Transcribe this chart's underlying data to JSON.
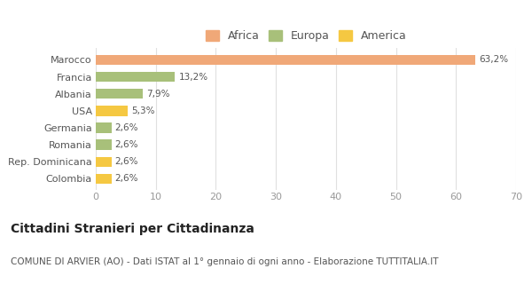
{
  "categories": [
    "Colombia",
    "Rep. Dominicana",
    "Romania",
    "Germania",
    "USA",
    "Albania",
    "Francia",
    "Marocco"
  ],
  "values": [
    2.6,
    2.6,
    2.6,
    2.6,
    5.3,
    7.9,
    13.2,
    63.2
  ],
  "labels": [
    "2,6%",
    "2,6%",
    "2,6%",
    "2,6%",
    "5,3%",
    "7,9%",
    "13,2%",
    "63,2%"
  ],
  "colors": [
    "#f5c842",
    "#f5c842",
    "#a8c07a",
    "#a8c07a",
    "#f5c842",
    "#a8c07a",
    "#a8c07a",
    "#f0a878"
  ],
  "legend_items": [
    {
      "label": "Africa",
      "color": "#f0a878"
    },
    {
      "label": "Europa",
      "color": "#a8c07a"
    },
    {
      "label": "America",
      "color": "#f5c842"
    }
  ],
  "xlim": [
    0,
    70
  ],
  "xticks": [
    0,
    10,
    20,
    30,
    40,
    50,
    60,
    70
  ],
  "title": "Cittadini Stranieri per Cittadinanza",
  "subtitle": "COMUNE DI ARVIER (AO) - Dati ISTAT al 1° gennaio di ogni anno - Elaborazione TUTTITALIA.IT",
  "background_color": "#ffffff",
  "plot_bg_color": "#ffffff",
  "bar_height": 0.6,
  "title_fontsize": 10,
  "subtitle_fontsize": 7.5,
  "label_fontsize": 7.5,
  "ytick_fontsize": 8,
  "xtick_fontsize": 8,
  "legend_fontsize": 9
}
